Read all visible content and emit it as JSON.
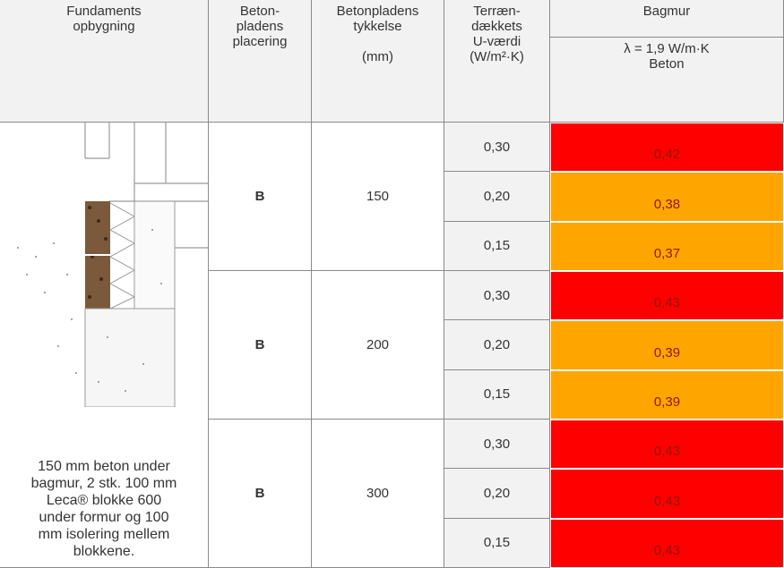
{
  "header": {
    "columns": [
      "Fundaments\nopbygning",
      "Beton-\npladens\nplacering",
      "Betonpladens\ntykkelse\n\n(mm)",
      "Terræn-\ndækkets\nU-værdi\n(W/m²·K)"
    ],
    "bagmur": "Bagmur",
    "bagmur_sub": "λ = 1,9 W/m·K\nBeton"
  },
  "caption": "150 mm beton under\nbagmur, 2 stk. 100 mm\nLeca® blokke 600\nunder formur og 100\nmm isolering mellem\nblokkene.",
  "groups": [
    {
      "placement": "B",
      "thickness": "150",
      "rows": [
        {
          "u": "0,30",
          "value": "0,42",
          "color": "#ff0000"
        },
        {
          "u": "0,20",
          "value": "0,38",
          "color": "#ffa500"
        },
        {
          "u": "0,15",
          "value": "0,37",
          "color": "#ffa500"
        }
      ]
    },
    {
      "placement": "B",
      "thickness": "200",
      "rows": [
        {
          "u": "0,30",
          "value": "0,43",
          "color": "#ff0000"
        },
        {
          "u": "0,20",
          "value": "0,39",
          "color": "#ffa500"
        },
        {
          "u": "0,15",
          "value": "0,39",
          "color": "#ffa500"
        }
      ]
    },
    {
      "placement": "B",
      "thickness": "300",
      "rows": [
        {
          "u": "0,30",
          "value": "0,43",
          "color": "#ff0000"
        },
        {
          "u": "0,20",
          "value": "0,43",
          "color": "#ff0000"
        },
        {
          "u": "0,15",
          "value": "0,43",
          "color": "#ff0000"
        }
      ]
    }
  ]
}
